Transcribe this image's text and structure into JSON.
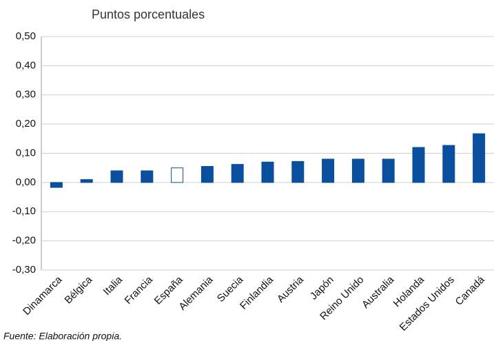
{
  "chart_data": {
    "type": "bar",
    "subtitle": "Puntos porcentuales",
    "source": "Fuente: Elaboración propia.",
    "categories": [
      "Dinamarca",
      "Bélgica",
      "Italia",
      "Francia",
      "España",
      "Alemania",
      "Suecia",
      "Finlandia",
      "Austria",
      "Japón",
      "Reino Unido",
      "Australia",
      "Holanda",
      "Estados Unidos",
      "Canadá"
    ],
    "values": [
      -0.017,
      0.01,
      0.04,
      0.04,
      0.05,
      0.055,
      0.062,
      0.07,
      0.072,
      0.08,
      0.08,
      0.08,
      0.12,
      0.127,
      0.167
    ],
    "color": "#0a4f9e",
    "fills": [
      "#0a4f9e",
      "#0a4f9e",
      "#0a4f9e",
      "#0a4f9e",
      "#ffffff",
      "#0a4f9e",
      "#0a4f9e",
      "#0a4f9e",
      "#0a4f9e",
      "#0a4f9e",
      "#0a4f9e",
      "#0a4f9e",
      "#0a4f9e",
      "#0a4f9e",
      "#0a4f9e"
    ],
    "ylim": [
      -0.3,
      0.5
    ],
    "yticks": [
      {
        "value": -0.3,
        "label": "-0,30"
      },
      {
        "value": -0.2,
        "label": "-0,20"
      },
      {
        "value": -0.1,
        "label": "-0,10"
      },
      {
        "value": 0,
        "label": "0,00"
      },
      {
        "value": 0.1,
        "label": "0,10"
      },
      {
        "value": 0.2,
        "label": "0,20"
      },
      {
        "value": 0.3,
        "label": "0,30"
      },
      {
        "value": 0.4,
        "label": "0,40"
      },
      {
        "value": 0.5,
        "label": "0,50"
      }
    ],
    "grid": true
  }
}
